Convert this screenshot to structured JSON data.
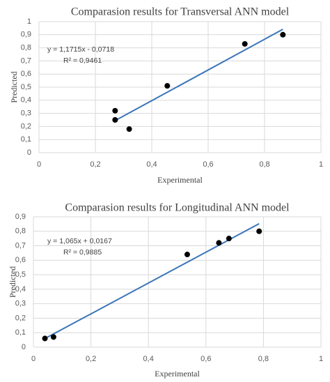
{
  "chart_data": [
    {
      "type": "scatter",
      "title": "Comparasion results for Transversal ANN model",
      "xlabel": "Experimental",
      "ylabel": "Predicted",
      "xlim": [
        0,
        1
      ],
      "ylim": [
        0,
        1
      ],
      "x_ticks": [
        "0",
        "0,2",
        "0,4",
        "0,6",
        "0,8",
        "1"
      ],
      "y_ticks": [
        "0",
        "0,1",
        "0,2",
        "0,3",
        "0,4",
        "0,5",
        "0,6",
        "0,7",
        "0,8",
        "0,9",
        "1"
      ],
      "grid": true,
      "points": [
        {
          "x": 0.27,
          "y": 0.32
        },
        {
          "x": 0.27,
          "y": 0.25
        },
        {
          "x": 0.32,
          "y": 0.18
        },
        {
          "x": 0.455,
          "y": 0.51
        },
        {
          "x": 0.73,
          "y": 0.83
        },
        {
          "x": 0.865,
          "y": 0.9
        }
      ],
      "trendline": {
        "slope": 1.1715,
        "intercept": -0.0718,
        "x_range": [
          0.27,
          0.865
        ]
      },
      "annotation": {
        "equation": "y = 1,1715x - 0,0718",
        "r2": "R² = 0,9461"
      }
    },
    {
      "type": "scatter",
      "title": "Comparasion results for Longitudinal ANN model",
      "xlabel": "Experimental",
      "ylabel": "Predicted",
      "xlim": [
        0,
        1
      ],
      "ylim": [
        0,
        0.9
      ],
      "x_ticks": [
        "0",
        "0,2",
        "0,4",
        "0,6",
        "0,8",
        "1"
      ],
      "y_ticks": [
        "0",
        "0,1",
        "0,2",
        "0,3",
        "0,4",
        "0,5",
        "0,6",
        "0,7",
        "0,8",
        "0,9"
      ],
      "grid": true,
      "points": [
        {
          "x": 0.04,
          "y": 0.06
        },
        {
          "x": 0.07,
          "y": 0.07
        },
        {
          "x": 0.535,
          "y": 0.64
        },
        {
          "x": 0.645,
          "y": 0.72
        },
        {
          "x": 0.68,
          "y": 0.75
        },
        {
          "x": 0.785,
          "y": 0.8
        }
      ],
      "trendline": {
        "slope": 1.065,
        "intercept": 0.0167,
        "x_range": [
          0.04,
          0.785
        ]
      },
      "annotation": {
        "equation": "y = 1,065x + 0,0167",
        "r2": "R² = 0,9885"
      }
    }
  ],
  "colors": {
    "grid": "#d9d9d9",
    "axis_text": "#595959",
    "points": "#000000",
    "trendline": "#3a75b8"
  }
}
